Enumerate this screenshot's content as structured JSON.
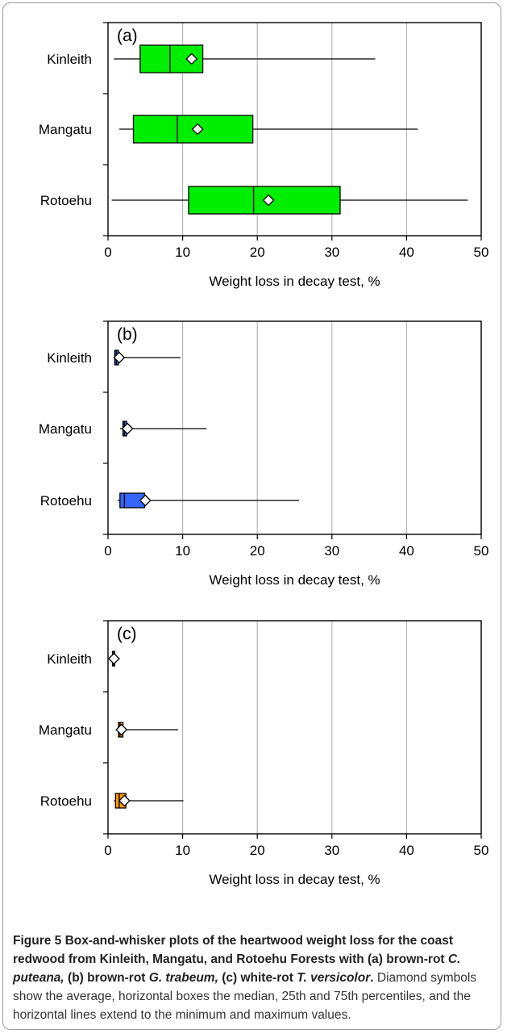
{
  "chart_data": [
    {
      "type": "boxplot",
      "panel_label": "(a)",
      "categories": [
        "Kinleith",
        "Mangatu",
        "Rotoehu"
      ],
      "xlabel": "Weight loss in decay test, %",
      "xlim": [
        0,
        50
      ],
      "xticks": [
        0,
        10,
        20,
        30,
        40,
        50
      ],
      "grid": true,
      "box_color": "#00ee00",
      "boxes": [
        {
          "min": 0.8,
          "q1": 4.3,
          "median": 8.3,
          "q3": 12.7,
          "max": 35.8,
          "mean": 11.2
        },
        {
          "min": 1.5,
          "q1": 3.4,
          "median": 9.3,
          "q3": 19.4,
          "max": 41.5,
          "mean": 12.0
        },
        {
          "min": 0.5,
          "q1": 10.8,
          "median": 19.5,
          "q3": 31.1,
          "max": 48.2,
          "mean": 21.5
        }
      ]
    },
    {
      "type": "boxplot",
      "panel_label": "(b)",
      "categories": [
        "Kinleith",
        "Mangatu",
        "Rotoehu"
      ],
      "xlabel": "Weight loss in decay test, %",
      "xlim": [
        0,
        50
      ],
      "xticks": [
        0,
        10,
        20,
        30,
        40,
        50
      ],
      "grid": true,
      "box_color": "#3366ff",
      "boxes": [
        {
          "min": 0.8,
          "q1": 0.9,
          "median": 1.1,
          "q3": 1.4,
          "max": 9.7,
          "mean": 1.5
        },
        {
          "min": 1.6,
          "q1": 2.0,
          "median": 2.2,
          "q3": 2.5,
          "max": 13.2,
          "mean": 2.6
        },
        {
          "min": 1.3,
          "q1": 1.6,
          "median": 2.2,
          "q3": 4.9,
          "max": 25.6,
          "mean": 5.0
        }
      ]
    },
    {
      "type": "boxplot",
      "panel_label": "(c)",
      "categories": [
        "Kinleith",
        "Mangatu",
        "Rotoehu"
      ],
      "xlabel": "Weight loss in decay  test, %",
      "xlim": [
        0,
        50
      ],
      "xticks": [
        0,
        10,
        20,
        30,
        40,
        50
      ],
      "grid": true,
      "box_color": "#ff9900",
      "boxes": [
        {
          "min": 0.6,
          "q1": 0.6,
          "median": 0.7,
          "q3": 0.9,
          "max": 0.9,
          "mean": 0.8
        },
        {
          "min": 1.2,
          "q1": 1.4,
          "median": 1.6,
          "q3": 2.0,
          "max": 9.4,
          "mean": 1.8
        },
        {
          "min": 0.8,
          "q1": 1.0,
          "median": 1.5,
          "q3": 2.4,
          "max": 10.1,
          "mean": 2.2
        }
      ]
    }
  ],
  "caption": {
    "b1": "Figure 5 Box-and-whisker plots of the heartwood weight loss for the coast redwood from Kinleith, Mangatu, and Rotoehu Forests with (a) brown-rot ",
    "i1": "C. puteana,",
    "b2": " (b) brown-rot ",
    "i2": "G. trabeum,",
    "b3": " (c) white-rot ",
    "i3": "T. versicolor",
    "b4": ".",
    "rest": " Diamond symbols show the average, horizontal boxes the median, 25th and 75th percentiles, and the horizontal lines extend to the minimum and maximum values."
  }
}
